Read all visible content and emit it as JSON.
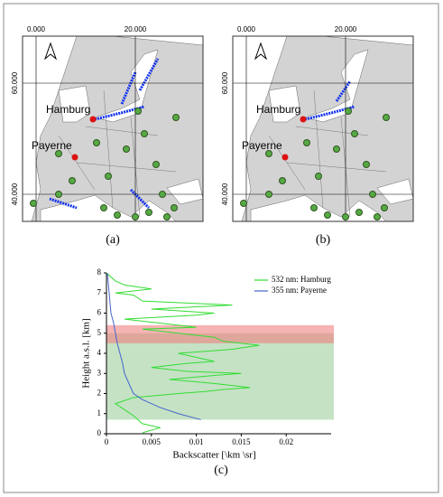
{
  "maps": [
    {
      "caption": "(a)",
      "lon_labels": [
        "0.000",
        "20.000"
      ],
      "lat_labels": [
        "60.000",
        "40.000"
      ],
      "cities": [
        "Hamburg",
        "Payerne"
      ]
    },
    {
      "caption": "(b)",
      "lon_labels": [
        "0.000",
        "20.000"
      ],
      "lat_labels": [
        "60.000",
        "40.000"
      ],
      "cities": [
        "Hamburg",
        "Payerne"
      ]
    }
  ],
  "chart_data": {
    "type": "line",
    "caption": "(c)",
    "x_label": "Backscatter [\\km \\sr]",
    "y_label": "Height a.s.l. [km]",
    "xlim": [
      0,
      0.025
    ],
    "xticks": [
      0,
      0.005,
      0.01,
      0.015,
      0.02
    ],
    "ylim": [
      0,
      8
    ],
    "yticks": [
      0,
      1,
      2,
      3,
      4,
      5,
      6,
      7,
      8
    ],
    "legend": "upper right",
    "shaded_regions": [
      {
        "color": "#9fcf9f",
        "ylim": [
          0.7,
          5.0
        ]
      },
      {
        "color": "#f08080",
        "ylim": [
          4.5,
          5.4
        ]
      }
    ],
    "series": [
      {
        "name": "532 nm: Hamburg",
        "color": "#33dd33",
        "x": [
          0.004,
          0.006,
          0.004,
          0.003,
          0.002,
          0.001,
          0.003,
          0.008,
          0.011,
          0.013,
          0.016,
          0.012,
          0.007,
          0.012,
          0.015,
          0.009,
          0.005,
          0.009,
          0.012,
          0.01,
          0.008,
          0.014,
          0.017,
          0.013,
          0.012,
          0.008,
          0.004,
          0.01,
          0.006,
          0.002,
          0.01,
          0.012,
          0.005,
          0.014,
          0.004,
          0.003,
          0.001,
          0.005,
          0.002,
          0.001,
          0
        ],
        "y": [
          0.05,
          0.3,
          0.5,
          0.9,
          1.2,
          1.5,
          1.8,
          2.0,
          2.1,
          2.2,
          2.3,
          2.5,
          2.7,
          2.9,
          3.0,
          3.1,
          3.3,
          3.5,
          3.6,
          3.8,
          4.0,
          4.2,
          4.4,
          4.6,
          4.8,
          5.0,
          5.2,
          5.3,
          5.5,
          5.7,
          5.9,
          6.0,
          6.2,
          6.4,
          6.6,
          6.9,
          7.0,
          7.2,
          7.4,
          7.6,
          8.0
        ]
      },
      {
        "name": "355 nm: Payerne",
        "color": "#4466cc",
        "x": [
          0.0105,
          0.008,
          0.006,
          0.004,
          0.003,
          0.0025,
          0.002,
          0.0018,
          0.0015,
          0.0012,
          0.001,
          0.0008,
          0.0005,
          0.0003,
          0.0001
        ],
        "y": [
          0.7,
          1.0,
          1.3,
          1.7,
          2.0,
          2.5,
          3.0,
          3.5,
          4.0,
          4.5,
          5.0,
          5.5,
          6.0,
          7.0,
          8.0
        ]
      }
    ]
  }
}
